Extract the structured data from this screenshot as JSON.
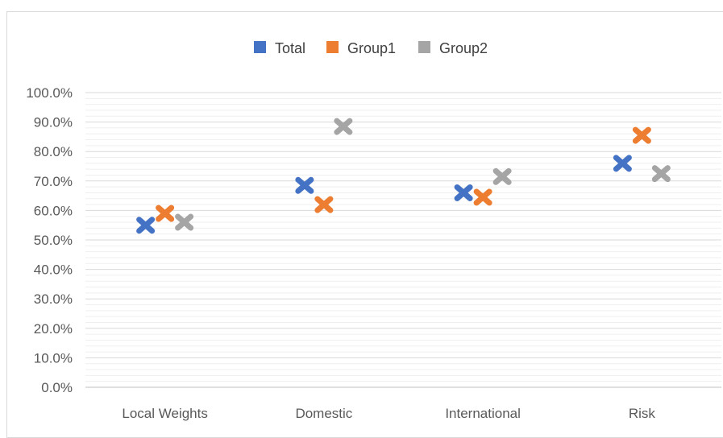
{
  "chart_data": {
    "type": "scatter",
    "categories": [
      "Local Weights",
      "Domestic",
      "International",
      "Risk"
    ],
    "series": [
      {
        "name": "Total",
        "values": [
          0.55,
          0.685,
          0.66,
          0.76
        ],
        "color": "#4472C4",
        "marker": "x-marker"
      },
      {
        "name": "Group1",
        "values": [
          0.59,
          0.62,
          0.645,
          0.855
        ],
        "color": "#ED7D31",
        "marker": "x-marker"
      },
      {
        "name": "Group2",
        "values": [
          0.56,
          0.885,
          0.715,
          0.725
        ],
        "color": "#A5A5A5",
        "marker": "x-marker"
      }
    ],
    "ylim": [
      0,
      1
    ],
    "yticks": [
      "0.0%",
      "10.0%",
      "20.0%",
      "30.0%",
      "40.0%",
      "50.0%",
      "60.0%",
      "70.0%",
      "80.0%",
      "90.0%",
      "100.0%"
    ],
    "ytick_values": [
      0,
      0.1,
      0.2,
      0.3,
      0.4,
      0.5,
      0.6,
      0.7,
      0.8,
      0.9,
      1.0
    ],
    "grid": true,
    "legend_position": "top",
    "axis_color": "#d9d9d9",
    "grid_color": "#d9d9d9"
  }
}
